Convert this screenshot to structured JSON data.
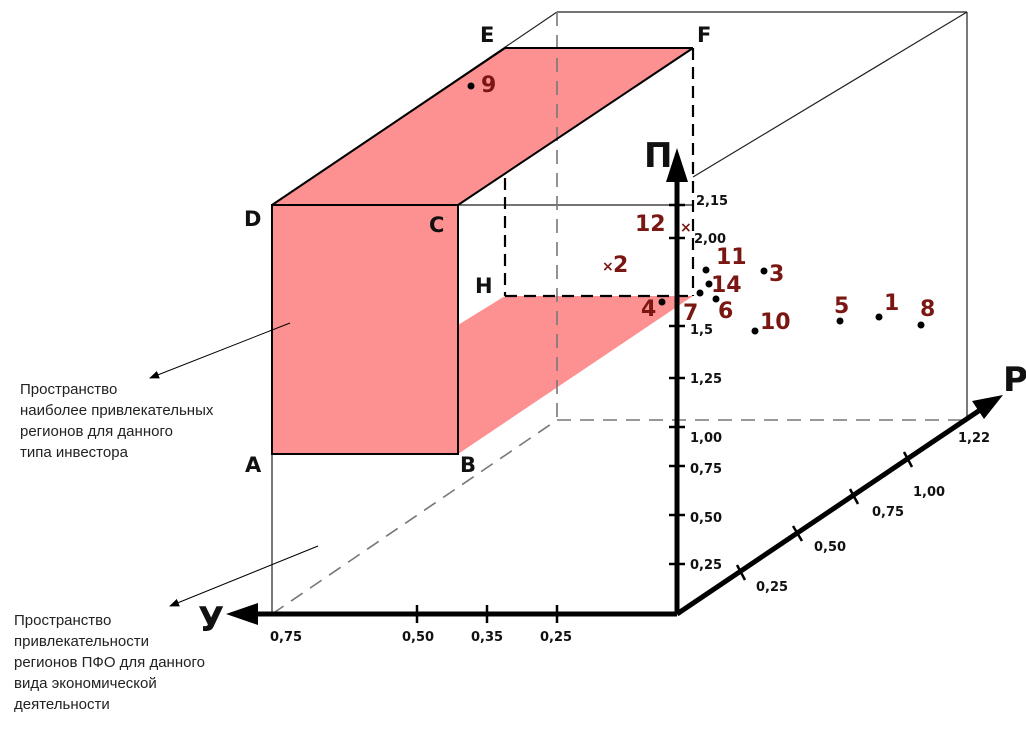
{
  "vertices": {
    "E": "E",
    "F": "F",
    "D": "D",
    "C": "C",
    "H": "H",
    "A": "A",
    "B": "B"
  },
  "axes": {
    "vertical": "П",
    "right": "Р",
    "left": "У"
  },
  "vertical_ticks": [
    "2,15",
    "2,00",
    "1,5",
    "1,25",
    "1,00",
    "0,75",
    "0,50",
    "0,25"
  ],
  "right_ticks": [
    "0,25",
    "0,50",
    "0,75",
    "1,00",
    "1,22"
  ],
  "left_ticks": [
    "0,75",
    "0,50",
    "0,35",
    "0,25"
  ],
  "points": [
    {
      "label": "9",
      "marker": "dot"
    },
    {
      "label": "12",
      "marker": "cross"
    },
    {
      "label": "2",
      "marker": "cross"
    },
    {
      "label": "11",
      "marker": "dot"
    },
    {
      "label": "3",
      "marker": "dot"
    },
    {
      "label": "14",
      "marker": "dot"
    },
    {
      "label": "4",
      "marker": "dot"
    },
    {
      "label": "7",
      "marker": "dot"
    },
    {
      "label": "6",
      "marker": "dot"
    },
    {
      "label": "10",
      "marker": "dot"
    },
    {
      "label": "5",
      "marker": "dot"
    },
    {
      "label": "1",
      "marker": "dot"
    },
    {
      "label": "8",
      "marker": "dot"
    }
  ],
  "notes": {
    "attractive_space": "Пространство\nнаиболее привлекательных\nрегионов для данного\nтипа инвестора",
    "region_space": "Пространство\nпривлекательности\nрегионов ПФО для данного\nвида экономической\nдеятельности"
  },
  "colors": {
    "highlight": "#fd9191",
    "point": "#7b1712",
    "lines": "#000000"
  }
}
